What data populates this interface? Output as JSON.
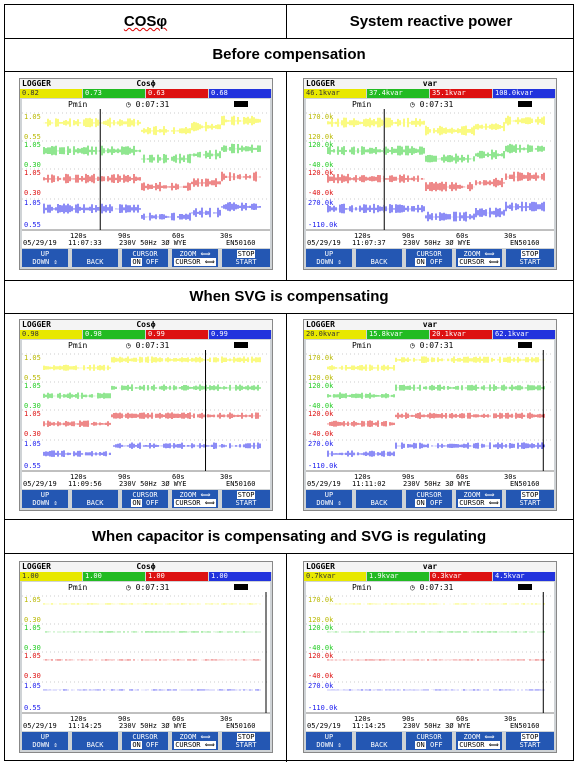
{
  "headers": {
    "left": "COSφ",
    "right": "System reactive power"
  },
  "sections": [
    "Before compensation",
    "When SVG is compensating",
    "When capacitor is compensating and SVG is regulating"
  ],
  "screens": [
    {
      "logger": "LOGGER",
      "unit": "Cosϕ",
      "vals": [
        "0.82",
        "0.73",
        "0.63",
        "0.68"
      ],
      "pmin": "Pmin",
      "time": "0:07:31",
      "axis": [
        [
          "1.05",
          "0.55"
        ],
        [
          "1.05",
          "0.30"
        ],
        [
          "1.05",
          "0.30"
        ],
        [
          "1.05",
          "0.55"
        ]
      ],
      "ticks": [
        "120s",
        "90s",
        "60s",
        "30s"
      ],
      "date": "05/29/19",
      "clock": "11:07:33",
      "mains": "230V 50Hz 3Ø WYE",
      "ref": "EN50160",
      "level": 0,
      "cursor": 0.26
    },
    {
      "logger": "LOGGER",
      "unit": "var",
      "vals": [
        "46.1kvar",
        "37.4kvar",
        "35.1kvar",
        "108.0kvar"
      ],
      "pmin": "Pmin",
      "time": "0:07:31",
      "axis": [
        [
          "170.0k",
          "120.0k"
        ],
        [
          "120.0k",
          "-40.0k"
        ],
        [
          "120.0k",
          "-40.0k"
        ],
        [
          "270.0k",
          "-110.0k"
        ]
      ],
      "ticks": [
        "120s",
        "90s",
        "60s",
        "30s"
      ],
      "date": "05/29/19",
      "clock": "11:07:37",
      "mains": "230V 50Hz 3Ø WYE",
      "ref": "EN50160",
      "level": 0,
      "cursor": 0.26
    },
    {
      "logger": "LOGGER",
      "unit": "Cosϕ",
      "vals": [
        "0.98",
        "0.98",
        "0.99",
        "0.99"
      ],
      "pmin": "Pmin",
      "time": "0:07:31",
      "axis": [
        [
          "1.05",
          "0.55"
        ],
        [
          "1.05",
          "0.30"
        ],
        [
          "1.05",
          "0.30"
        ],
        [
          "1.05",
          "0.55"
        ]
      ],
      "ticks": [
        "120s",
        "90s",
        "60s",
        "30s"
      ],
      "date": "05/29/19",
      "clock": "11:09:56",
      "mains": "230V 50Hz 3Ø WYE",
      "ref": "EN50160",
      "level": 1,
      "cursor": 0.73
    },
    {
      "logger": "LOGGER",
      "unit": "var",
      "vals": [
        "20.0kvar",
        "15.8kvar",
        "20.1kvar",
        "62.1kvar"
      ],
      "pmin": "Pmin",
      "time": "0:07:31",
      "axis": [
        [
          "170.0k",
          "120.0k"
        ],
        [
          "120.0k",
          "-40.0k"
        ],
        [
          "120.0k",
          "-40.0k"
        ],
        [
          "270.0k",
          "-110.0k"
        ]
      ],
      "ticks": [
        "120s",
        "90s",
        "60s",
        "30s"
      ],
      "date": "05/29/19",
      "clock": "11:11:02",
      "mains": "230V 50Hz 3Ø WYE",
      "ref": "EN50160",
      "level": 1,
      "cursor": 0.97
    },
    {
      "logger": "LOGGER",
      "unit": "Cosϕ",
      "vals": [
        "1.00",
        "1.00",
        "1.00",
        "1.00"
      ],
      "pmin": "Pmin",
      "time": "0:07:31",
      "axis": [
        [
          "1.05",
          "0.30"
        ],
        [
          "1.05",
          "0.30"
        ],
        [
          "1.05",
          "0.30"
        ],
        [
          "1.05",
          "0.55"
        ]
      ],
      "ticks": [
        "120s",
        "90s",
        "60s",
        "30s"
      ],
      "date": "05/29/19",
      "clock": "11:14:25",
      "mains": "230V 50Hz 3Ø WYE",
      "ref": "EN50160",
      "level": 2,
      "cursor": 1.0
    },
    {
      "logger": "LOGGER",
      "unit": "var",
      "vals": [
        "0.7kvar",
        "1.9kvar",
        "0.3kvar",
        "4.5kvar"
      ],
      "pmin": "Pmin",
      "time": "0:07:31",
      "axis": [
        [
          "170.0k",
          "120.0k"
        ],
        [
          "120.0k",
          "-40.0k"
        ],
        [
          "120.0k",
          "-40.0k"
        ],
        [
          "270.0k",
          "-110.0k"
        ]
      ],
      "ticks": [
        "120s",
        "90s",
        "60s",
        "30s"
      ],
      "date": "05/29/19",
      "clock": "11:14:25",
      "mains": "230V 50Hz 3Ø WYE",
      "ref": "EN50160",
      "level": 2,
      "cursor": 0.97
    }
  ],
  "buttons": {
    "updown": [
      "UP",
      "DOWN"
    ],
    "back": "BACK",
    "cursor": [
      "CURSOR",
      "ON",
      "OFF"
    ],
    "zoom": [
      "ZOOM ⟺",
      "CURSOR ⟺"
    ],
    "stop": [
      "STOP",
      "START"
    ]
  },
  "colors": {
    "yellow": "#f5f500",
    "green": "#22cc22",
    "red": "#dd1111",
    "blue": "#1a1aee"
  }
}
